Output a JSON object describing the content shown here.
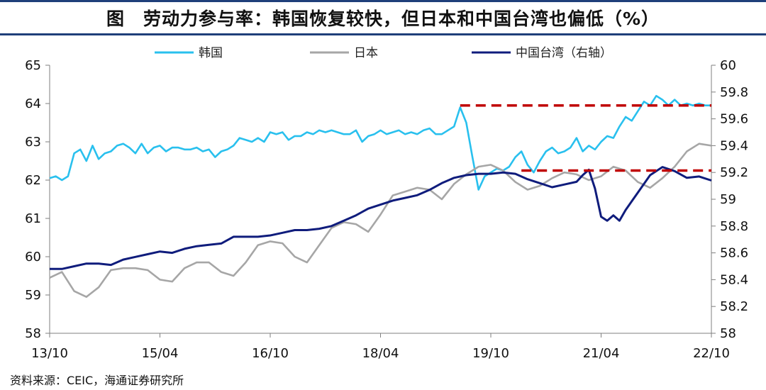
{
  "title": "图　劳动力参与率：韩国恢复较快，但日本和中国台湾也偏低（%）",
  "source": "资料来源：CEIC，海通证券研究所",
  "chart_data": {
    "type": "line",
    "x_tick_labels": [
      "13/10",
      "15/04",
      "16/10",
      "18/04",
      "19/10",
      "21/04",
      "22/10"
    ],
    "x_range": [
      "2013-10",
      "2022-10"
    ],
    "y_left": {
      "ticks": [
        "58",
        "59",
        "60",
        "61",
        "62",
        "63",
        "64",
        "65"
      ],
      "range": [
        58,
        65
      ]
    },
    "y_right": {
      "ticks": [
        "58",
        "58.2",
        "58.4",
        "58.6",
        "58.8",
        "59",
        "59.2",
        "59.4",
        "59.6",
        "59.8",
        "60"
      ],
      "range": [
        58,
        60
      ]
    },
    "legend": {
      "placement": "top"
    },
    "series": [
      {
        "name": "韩国",
        "axis": "left",
        "color": "#29c0ee",
        "points": [
          [
            "2013-10",
            62.05
          ],
          [
            "2013-11",
            62.1
          ],
          [
            "2013-12",
            62.0
          ],
          [
            "2014-01",
            62.1
          ],
          [
            "2014-02",
            62.7
          ],
          [
            "2014-03",
            62.8
          ],
          [
            "2014-04",
            62.5
          ],
          [
            "2014-05",
            62.9
          ],
          [
            "2014-06",
            62.55
          ],
          [
            "2014-07",
            62.7
          ],
          [
            "2014-08",
            62.75
          ],
          [
            "2014-09",
            62.9
          ],
          [
            "2014-10",
            62.95
          ],
          [
            "2014-11",
            62.85
          ],
          [
            "2014-12",
            62.7
          ],
          [
            "2015-01",
            62.95
          ],
          [
            "2015-02",
            62.7
          ],
          [
            "2015-03",
            62.85
          ],
          [
            "2015-04",
            62.9
          ],
          [
            "2015-05",
            62.75
          ],
          [
            "2015-06",
            62.85
          ],
          [
            "2015-07",
            62.85
          ],
          [
            "2015-08",
            62.8
          ],
          [
            "2015-09",
            62.8
          ],
          [
            "2015-10",
            62.85
          ],
          [
            "2015-11",
            62.75
          ],
          [
            "2015-12",
            62.8
          ],
          [
            "2016-01",
            62.6
          ],
          [
            "2016-02",
            62.75
          ],
          [
            "2016-03",
            62.8
          ],
          [
            "2016-04",
            62.9
          ],
          [
            "2016-05",
            63.1
          ],
          [
            "2016-06",
            63.05
          ],
          [
            "2016-07",
            63.0
          ],
          [
            "2016-08",
            63.1
          ],
          [
            "2016-09",
            63.0
          ],
          [
            "2016-10",
            63.25
          ],
          [
            "2016-11",
            63.2
          ],
          [
            "2016-12",
            63.25
          ],
          [
            "2017-01",
            63.05
          ],
          [
            "2017-02",
            63.15
          ],
          [
            "2017-03",
            63.15
          ],
          [
            "2017-04",
            63.25
          ],
          [
            "2017-05",
            63.2
          ],
          [
            "2017-06",
            63.3
          ],
          [
            "2017-07",
            63.25
          ],
          [
            "2017-08",
            63.3
          ],
          [
            "2017-09",
            63.25
          ],
          [
            "2017-10",
            63.2
          ],
          [
            "2017-11",
            63.2
          ],
          [
            "2017-12",
            63.3
          ],
          [
            "2018-01",
            63.0
          ],
          [
            "2018-02",
            63.15
          ],
          [
            "2018-03",
            63.2
          ],
          [
            "2018-04",
            63.3
          ],
          [
            "2018-05",
            63.2
          ],
          [
            "2018-06",
            63.25
          ],
          [
            "2018-07",
            63.3
          ],
          [
            "2018-08",
            63.2
          ],
          [
            "2018-09",
            63.25
          ],
          [
            "2018-10",
            63.2
          ],
          [
            "2018-11",
            63.3
          ],
          [
            "2018-12",
            63.35
          ],
          [
            "2019-01",
            63.2
          ],
          [
            "2019-02",
            63.2
          ],
          [
            "2019-03",
            63.3
          ],
          [
            "2019-04",
            63.4
          ],
          [
            "2019-05",
            63.9
          ],
          [
            "2019-06",
            63.5
          ],
          [
            "2019-07",
            62.6
          ],
          [
            "2019-08",
            61.75
          ],
          [
            "2019-09",
            62.1
          ],
          [
            "2019-10",
            62.2
          ],
          [
            "2019-11",
            62.3
          ],
          [
            "2019-12",
            62.25
          ],
          [
            "2020-01",
            62.35
          ],
          [
            "2020-02",
            62.6
          ],
          [
            "2020-03",
            62.75
          ],
          [
            "2020-04",
            62.4
          ],
          [
            "2020-05",
            62.2
          ],
          [
            "2020-06",
            62.5
          ],
          [
            "2020-07",
            62.75
          ],
          [
            "2020-08",
            62.85
          ],
          [
            "2020-09",
            62.7
          ],
          [
            "2020-10",
            62.75
          ],
          [
            "2020-11",
            62.85
          ],
          [
            "2020-12",
            63.1
          ],
          [
            "2021-01",
            62.75
          ],
          [
            "2021-02",
            62.9
          ],
          [
            "2021-03",
            62.8
          ],
          [
            "2021-04",
            63.0
          ],
          [
            "2021-05",
            63.15
          ],
          [
            "2021-06",
            63.1
          ],
          [
            "2021-07",
            63.4
          ],
          [
            "2021-08",
            63.65
          ],
          [
            "2021-09",
            63.55
          ],
          [
            "2021-10",
            63.8
          ],
          [
            "2021-11",
            64.05
          ],
          [
            "2021-12",
            63.95
          ],
          [
            "2022-01",
            64.2
          ],
          [
            "2022-02",
            64.1
          ],
          [
            "2022-03",
            63.95
          ],
          [
            "2022-04",
            64.1
          ],
          [
            "2022-05",
            63.95
          ],
          [
            "2022-06",
            64.0
          ],
          [
            "2022-07",
            63.95
          ],
          [
            "2022-08",
            64.0
          ],
          [
            "2022-09",
            63.95
          ],
          [
            "2022-10",
            63.95
          ]
        ]
      },
      {
        "name": "日本",
        "axis": "left",
        "color": "#a6a6a6",
        "points": [
          [
            "2013-10",
            59.45
          ],
          [
            "2013-12",
            59.6
          ],
          [
            "2014-02",
            59.1
          ],
          [
            "2014-04",
            58.95
          ],
          [
            "2014-06",
            59.2
          ],
          [
            "2014-08",
            59.65
          ],
          [
            "2014-10",
            59.7
          ],
          [
            "2014-12",
            59.7
          ],
          [
            "2015-02",
            59.65
          ],
          [
            "2015-04",
            59.4
          ],
          [
            "2015-06",
            59.35
          ],
          [
            "2015-08",
            59.7
          ],
          [
            "2015-10",
            59.85
          ],
          [
            "2015-12",
            59.85
          ],
          [
            "2016-02",
            59.6
          ],
          [
            "2016-04",
            59.5
          ],
          [
            "2016-06",
            59.85
          ],
          [
            "2016-08",
            60.3
          ],
          [
            "2016-10",
            60.4
          ],
          [
            "2016-12",
            60.35
          ],
          [
            "2017-02",
            60.0
          ],
          [
            "2017-04",
            59.85
          ],
          [
            "2017-06",
            60.3
          ],
          [
            "2017-08",
            60.75
          ],
          [
            "2017-10",
            60.9
          ],
          [
            "2017-12",
            60.85
          ],
          [
            "2018-02",
            60.65
          ],
          [
            "2018-04",
            61.1
          ],
          [
            "2018-06",
            61.6
          ],
          [
            "2018-08",
            61.7
          ],
          [
            "2018-10",
            61.8
          ],
          [
            "2018-12",
            61.75
          ],
          [
            "2019-02",
            61.5
          ],
          [
            "2019-04",
            61.9
          ],
          [
            "2019-06",
            62.15
          ],
          [
            "2019-08",
            62.35
          ],
          [
            "2019-10",
            62.4
          ],
          [
            "2019-12",
            62.25
          ],
          [
            "2020-02",
            61.95
          ],
          [
            "2020-04",
            61.75
          ],
          [
            "2020-06",
            61.85
          ],
          [
            "2020-08",
            62.05
          ],
          [
            "2020-10",
            62.2
          ],
          [
            "2020-12",
            62.15
          ],
          [
            "2021-02",
            62.0
          ],
          [
            "2021-04",
            62.1
          ],
          [
            "2021-06",
            62.35
          ],
          [
            "2021-08",
            62.25
          ],
          [
            "2021-10",
            61.95
          ],
          [
            "2021-12",
            61.8
          ],
          [
            "2022-02",
            62.05
          ],
          [
            "2022-04",
            62.35
          ],
          [
            "2022-06",
            62.75
          ],
          [
            "2022-08",
            62.95
          ],
          [
            "2022-10",
            62.9
          ]
        ]
      },
      {
        "name": "中国台湾（右轴）",
        "axis": "right",
        "color": "#0f1c7c",
        "points": [
          [
            "2013-10",
            58.48
          ],
          [
            "2013-12",
            58.48
          ],
          [
            "2014-02",
            58.5
          ],
          [
            "2014-04",
            58.52
          ],
          [
            "2014-06",
            58.52
          ],
          [
            "2014-08",
            58.51
          ],
          [
            "2014-10",
            58.55
          ],
          [
            "2014-12",
            58.57
          ],
          [
            "2015-02",
            58.59
          ],
          [
            "2015-04",
            58.61
          ],
          [
            "2015-06",
            58.6
          ],
          [
            "2015-08",
            58.63
          ],
          [
            "2015-10",
            58.65
          ],
          [
            "2015-12",
            58.66
          ],
          [
            "2016-02",
            58.67
          ],
          [
            "2016-04",
            58.72
          ],
          [
            "2016-06",
            58.72
          ],
          [
            "2016-08",
            58.72
          ],
          [
            "2016-10",
            58.73
          ],
          [
            "2016-12",
            58.75
          ],
          [
            "2017-02",
            58.77
          ],
          [
            "2017-04",
            58.77
          ],
          [
            "2017-06",
            58.78
          ],
          [
            "2017-08",
            58.8
          ],
          [
            "2017-10",
            58.84
          ],
          [
            "2017-12",
            58.88
          ],
          [
            "2018-02",
            58.93
          ],
          [
            "2018-04",
            58.96
          ],
          [
            "2018-06",
            58.99
          ],
          [
            "2018-08",
            59.01
          ],
          [
            "2018-10",
            59.03
          ],
          [
            "2018-12",
            59.07
          ],
          [
            "2019-02",
            59.12
          ],
          [
            "2019-04",
            59.16
          ],
          [
            "2019-06",
            59.18
          ],
          [
            "2019-08",
            59.19
          ],
          [
            "2019-10",
            59.19
          ],
          [
            "2019-12",
            59.2
          ],
          [
            "2020-02",
            59.19
          ],
          [
            "2020-04",
            59.15
          ],
          [
            "2020-06",
            59.12
          ],
          [
            "2020-08",
            59.09
          ],
          [
            "2020-10",
            59.11
          ],
          [
            "2020-12",
            59.13
          ],
          [
            "2021-01",
            59.18
          ],
          [
            "2021-02",
            59.22
          ],
          [
            "2021-03",
            59.08
          ],
          [
            "2021-04",
            58.87
          ],
          [
            "2021-05",
            58.84
          ],
          [
            "2021-06",
            58.88
          ],
          [
            "2021-07",
            58.84
          ],
          [
            "2021-08",
            58.92
          ],
          [
            "2021-10",
            59.05
          ],
          [
            "2021-12",
            59.18
          ],
          [
            "2022-02",
            59.24
          ],
          [
            "2022-04",
            59.21
          ],
          [
            "2022-06",
            59.16
          ],
          [
            "2022-08",
            59.17
          ],
          [
            "2022-10",
            59.14
          ]
        ]
      }
    ],
    "reference_lines": [
      {
        "axis": "left",
        "y": 63.95,
        "x_start": "2019-05",
        "x_end": "2022-10",
        "style": "dashed",
        "color": "#c00000"
      },
      {
        "axis": "left",
        "y": 62.25,
        "x_start": "2020-03",
        "x_end": "2022-10",
        "style": "dashed",
        "color": "#c00000"
      }
    ]
  }
}
